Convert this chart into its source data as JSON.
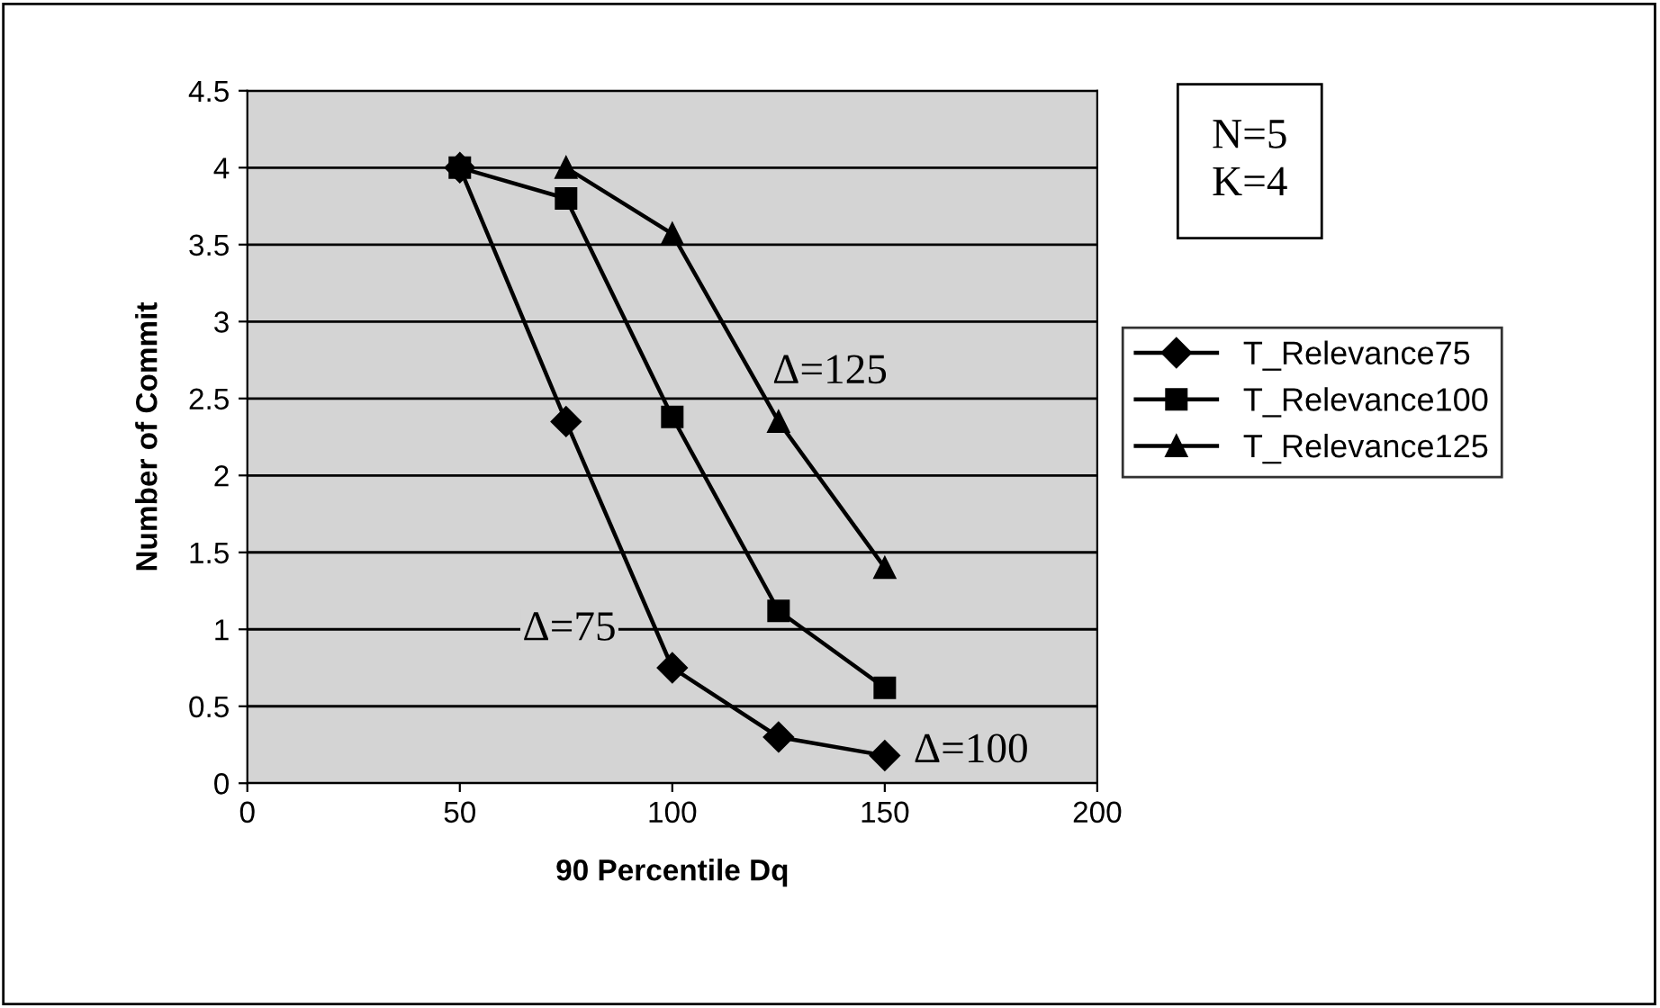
{
  "chart_data": {
    "type": "line",
    "xlabel": "90 Percentile Dq",
    "ylabel": "Number of Commit",
    "xlim": [
      0,
      200
    ],
    "xticks": [
      0,
      50,
      100,
      150,
      200
    ],
    "ylim": [
      0,
      4.5
    ],
    "yticks": [
      0,
      0.5,
      1,
      1.5,
      2,
      2.5,
      3,
      3.5,
      4,
      4.5
    ],
    "grid": "y",
    "legend": "right",
    "line_style": "solid",
    "series": [
      {
        "name": "T_Relevance75",
        "color": "#000000",
        "marker": "diamond",
        "x": [
          50,
          75,
          100,
          125,
          150
        ],
        "values": [
          4,
          2.35,
          0.75,
          0.3,
          0.18
        ]
      },
      {
        "name": "T_Relevance100",
        "color": "#000000",
        "marker": "square",
        "x": [
          50,
          75,
          100,
          125,
          150
        ],
        "values": [
          4,
          3.8,
          2.38,
          1.12,
          0.62
        ]
      },
      {
        "name": "T_Relevance125",
        "color": "#000000",
        "marker": "triangle",
        "x": [
          75,
          100,
          125,
          150
        ],
        "values": [
          4,
          3.57,
          2.35,
          1.4
        ]
      }
    ],
    "annotations": [
      "Δ=75",
      "Δ=100",
      "Δ=125",
      "N=5\nK=4"
    ]
  }
}
